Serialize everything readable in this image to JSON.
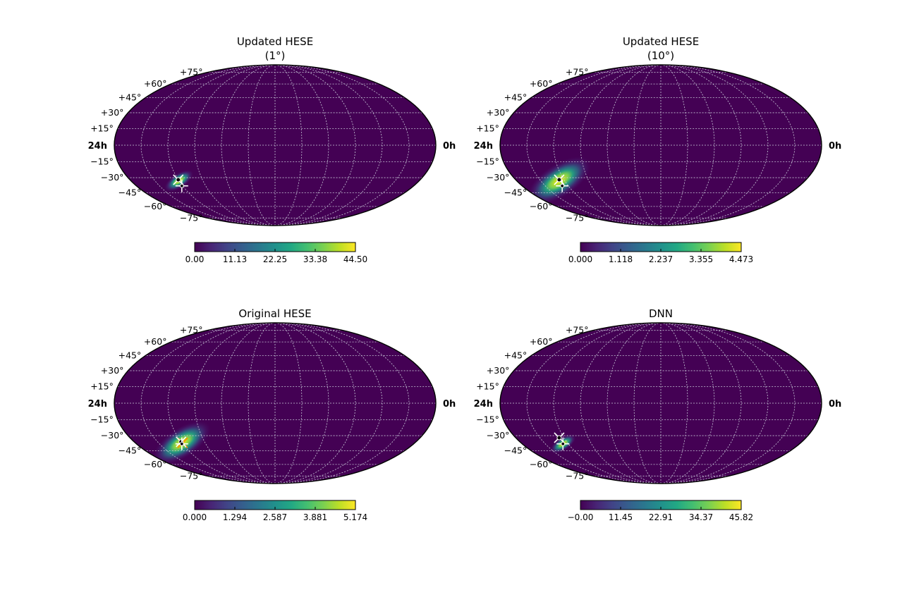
{
  "figure": {
    "ra_left_label": "24h",
    "ra_right_label": "0h"
  },
  "colors": {
    "background": "#440154",
    "grid": "#c8c8d8",
    "marker_white": "#ffffff",
    "marker_orange": "#ff8c00",
    "viridis": [
      "#440154",
      "#482475",
      "#414487",
      "#355f8d",
      "#2a788e",
      "#21918c",
      "#22a884",
      "#44bf70",
      "#7ad151",
      "#bddf26",
      "#fde725"
    ]
  },
  "chart_data": [
    {
      "type": "heatmap",
      "projection": "mollweide",
      "title_lines": [
        "Updated HESE",
        "(1°)"
      ],
      "dec_ticks": [
        "+75°",
        "+60°",
        "+45°",
        "+30°",
        "+15°",
        "−15°",
        "−30°",
        "−45°",
        "−60°",
        "−75°"
      ],
      "ra_labels": [
        "24h",
        "0h"
      ],
      "colorbar": {
        "min": 0.0,
        "max": 44.5,
        "ticks": [
          "0.00",
          "11.13",
          "22.25",
          "33.38",
          "44.50"
        ]
      },
      "peak": {
        "lon_deg": 120,
        "lat_deg": -33,
        "sigma_deg": 4.5,
        "spread_deg": 8
      },
      "markers": [
        {
          "kind": "x",
          "lon_deg": 120,
          "lat_deg": -32,
          "color": "white"
        },
        {
          "kind": "plus",
          "lon_deg": 121,
          "lat_deg": -38,
          "color": "white"
        }
      ]
    },
    {
      "type": "heatmap",
      "projection": "mollweide",
      "title_lines": [
        "Updated HESE",
        "(10°)"
      ],
      "dec_ticks": [
        "+75°",
        "+60°",
        "+45°",
        "+30°",
        "+15°",
        "−15°",
        "−30°",
        "−45°",
        "−60°",
        "−75°"
      ],
      "ra_labels": [
        "24h",
        "0h"
      ],
      "colorbar": {
        "min": 0.0,
        "max": 4.473,
        "ticks": [
          "0.000",
          "1.118",
          "2.237",
          "3.355",
          "4.473"
        ]
      },
      "peak": {
        "lon_deg": 127,
        "lat_deg": -33,
        "sigma_deg": 10,
        "spread_deg": 14
      },
      "markers": [
        {
          "kind": "x",
          "lon_deg": 126,
          "lat_deg": -32,
          "color": "white"
        },
        {
          "kind": "plus",
          "lon_deg": 128,
          "lat_deg": -38,
          "color": "white"
        }
      ]
    },
    {
      "type": "heatmap",
      "projection": "mollweide",
      "title_lines": [
        "Original HESE"
      ],
      "dec_ticks": [
        "+75°",
        "+60°",
        "+45°",
        "+30°",
        "+15°",
        "−15°",
        "−30°",
        "−45°",
        "−60°",
        "−75°"
      ],
      "ra_labels": [
        "24h",
        "0h"
      ],
      "colorbar": {
        "min": 0.0,
        "max": 5.174,
        "ticks": [
          "0.000",
          "1.294",
          "2.587",
          "3.881",
          "5.174"
        ]
      },
      "peak": {
        "lon_deg": 120,
        "lat_deg": -37,
        "sigma_deg": 9,
        "spread_deg": 13
      },
      "markers": [
        {
          "kind": "x",
          "lon_deg": 119,
          "lat_deg": -37,
          "color": "orange"
        },
        {
          "kind": "x",
          "lon_deg": 120,
          "lat_deg": -36,
          "color": "white"
        },
        {
          "kind": "plus",
          "lon_deg": 121,
          "lat_deg": -38,
          "color": "white"
        }
      ]
    },
    {
      "type": "heatmap",
      "projection": "mollweide",
      "title_lines": [
        "DNN"
      ],
      "dec_ticks": [
        "+75°",
        "+60°",
        "+45°",
        "+30°",
        "+15°",
        "−15°",
        "−30°",
        "−45°",
        "−60°",
        "−75°"
      ],
      "ra_labels": [
        "24h",
        "0h"
      ],
      "colorbar": {
        "min": 0.0,
        "max": 45.82,
        "ticks": [
          "−0.00",
          "11.45",
          "22.91",
          "34.37",
          "45.82"
        ]
      },
      "peak": {
        "lon_deg": 127,
        "lat_deg": -38,
        "sigma_deg": 4,
        "spread_deg": 7
      },
      "markers": [
        {
          "kind": "x",
          "lon_deg": 126,
          "lat_deg": -32,
          "color": "white"
        },
        {
          "kind": "plus",
          "lon_deg": 127,
          "lat_deg": -38,
          "color": "white"
        }
      ]
    }
  ]
}
